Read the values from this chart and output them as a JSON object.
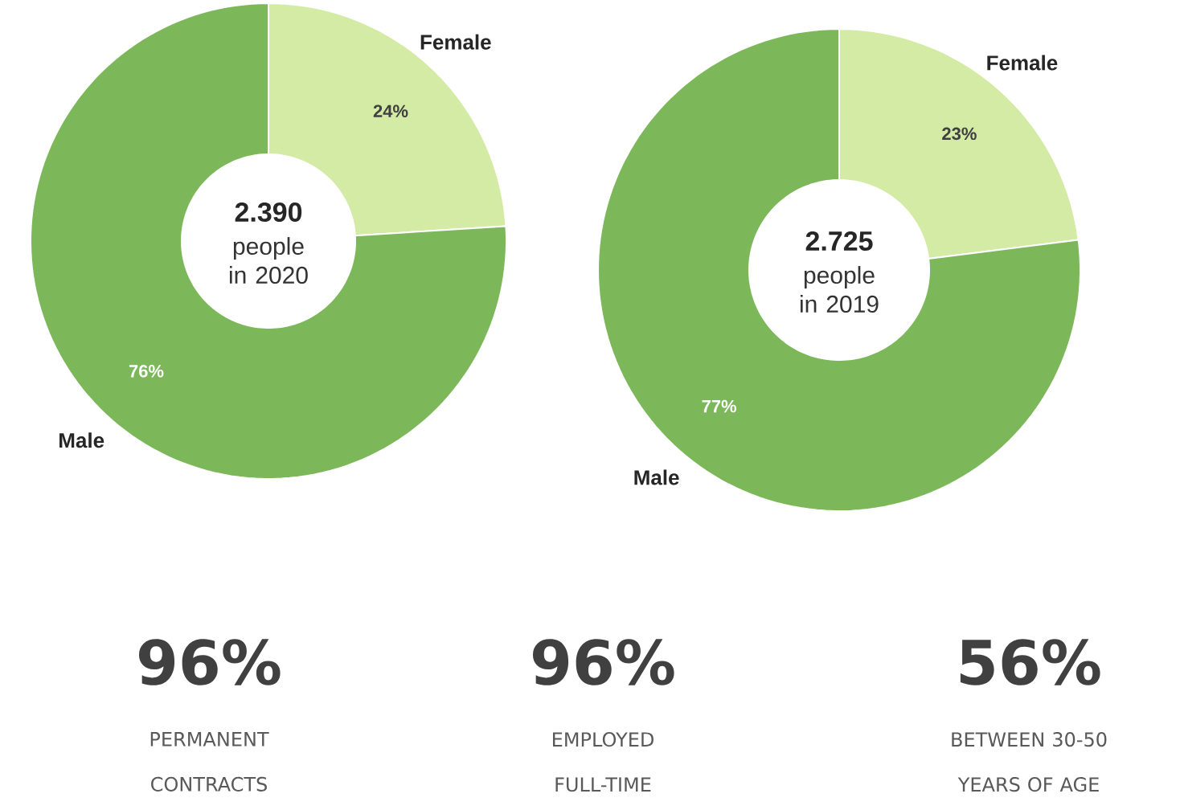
{
  "chart_data": [
    {
      "type": "donut",
      "categories": [
        "Female",
        "Male"
      ],
      "values": [
        24,
        76
      ],
      "colors": [
        "#d3eba4",
        "#7cb85a"
      ],
      "value_labels": [
        "24%",
        "76%"
      ],
      "legend": false,
      "annotations": [
        "2.390",
        "people in 2020"
      ]
    },
    {
      "type": "donut",
      "categories": [
        "Female",
        "Male"
      ],
      "values": [
        23,
        77
      ],
      "colors": [
        "#d3eba4",
        "#7cb85a"
      ],
      "value_labels": [
        "23%",
        "77%"
      ],
      "legend": false,
      "annotations": [
        "2.725",
        "people in 2019"
      ]
    },
    {
      "type": "other",
      "annotations": [
        "96%",
        "PERMANENT CONTRACTS",
        "96%",
        "EMPLOYED FULL-TIME",
        "56%",
        "BETWEEN 30-50 YEARS OF AGE"
      ]
    }
  ]
}
